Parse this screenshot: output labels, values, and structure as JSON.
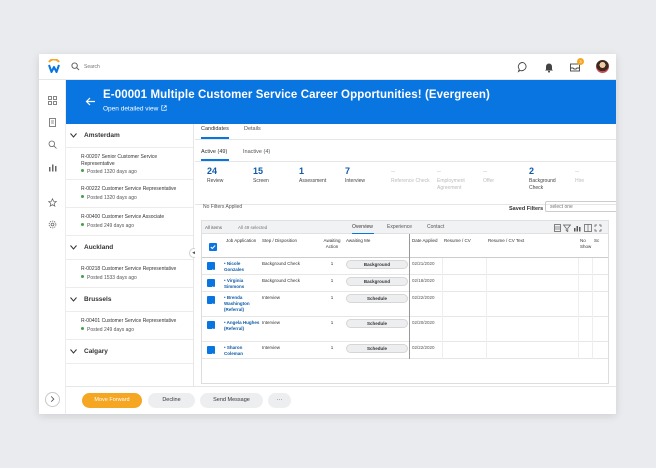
{
  "topbar": {
    "search_placeholder": "Search",
    "notification_count": "3"
  },
  "header": {
    "title": "E-00001 Multiple Customer Service Career Opportunities! (Evergreen)",
    "open_detailed": "Open detailed view"
  },
  "locations": [
    {
      "name": "Amsterdam",
      "reqs": [
        {
          "title": "R-00207 Senior Customer Service Representative",
          "posted": "Posted 1320 days ago"
        },
        {
          "title": "R-00222 Customer Service Representative",
          "posted": "Posted 1320 days ago"
        },
        {
          "title": "R-00400 Customer Service Associate",
          "posted": "Posted 249 days ago"
        }
      ]
    },
    {
      "name": "Auckland",
      "reqs": [
        {
          "title": "R-00218 Customer Service Representative",
          "posted": "Posted 1533 days ago"
        }
      ]
    },
    {
      "name": "Brussels",
      "reqs": [
        {
          "title": "R-00401 Customer Service Representative",
          "posted": "Posted 249 days ago"
        }
      ]
    },
    {
      "name": "Calgary",
      "reqs": []
    }
  ],
  "main_tabs": {
    "candidates": "Candidates",
    "details": "Details"
  },
  "sub_tabs": {
    "active": "Active (49)",
    "inactive": "Inactive (4)"
  },
  "stages": [
    {
      "count": "24",
      "label": "Review",
      "muted": false
    },
    {
      "count": "15",
      "label": "Screen",
      "muted": false
    },
    {
      "count": "1",
      "label": "Assessment",
      "muted": false
    },
    {
      "count": "7",
      "label": "Interview",
      "muted": false
    },
    {
      "count": "--",
      "label": "Reference Check",
      "muted": true
    },
    {
      "count": "--",
      "label": "Employment Agreement",
      "muted": true
    },
    {
      "count": "--",
      "label": "Offer",
      "muted": true
    },
    {
      "count": "2",
      "label": "Background Check",
      "muted": false
    },
    {
      "count": "--",
      "label": "Hire",
      "muted": true
    }
  ],
  "filters": {
    "no_filters": "No Filters Applied",
    "saved_filters_label": "Saved Filters",
    "select_placeholder": "select one"
  },
  "grid": {
    "all_items": "All items",
    "selected": "All 49 selected",
    "view_tabs": [
      "Overview",
      "Experience",
      "Contact"
    ],
    "columns": {
      "job_application": "Job Application",
      "step": "Step / Disposition",
      "awaiting_action": "Awaiting Action",
      "awaiting_me": "Awaiting Me",
      "date_applied": "Date Applied",
      "resume": "Resume / CV",
      "resume_text": "Resume / CV Text",
      "no_show": "No Show",
      "extra": "Sc"
    },
    "rows": [
      {
        "name": "Nicole Gonzales",
        "step": "Background Check",
        "awaiting": "1",
        "action": "Background",
        "date": "02/21/2020"
      },
      {
        "name": "Virginia Simmons",
        "step": "Background Check",
        "awaiting": "1",
        "action": "Background",
        "date": "02/18/2020"
      },
      {
        "name": "Brenda Washington (Referral)",
        "step": "Interview",
        "awaiting": "1",
        "action": "Schedule",
        "date": "02/22/2020"
      },
      {
        "name": "Angela Hughes (Referral)",
        "step": "Interview",
        "awaiting": "1",
        "action": "Schedule",
        "date": "02/20/2020"
      },
      {
        "name": "Sharon Coleman",
        "step": "Interview",
        "awaiting": "1",
        "action": "Schedule",
        "date": "02/22/2020"
      }
    ]
  },
  "footer": {
    "move_forward": "Move Forward",
    "decline": "Decline",
    "send_message": "Send Message",
    "more": "···"
  },
  "colors": {
    "brand_blue": "#0875e1",
    "primary_orange": "#f5a623",
    "link_blue": "#0e5aa7",
    "posted_green": "#43a047"
  }
}
